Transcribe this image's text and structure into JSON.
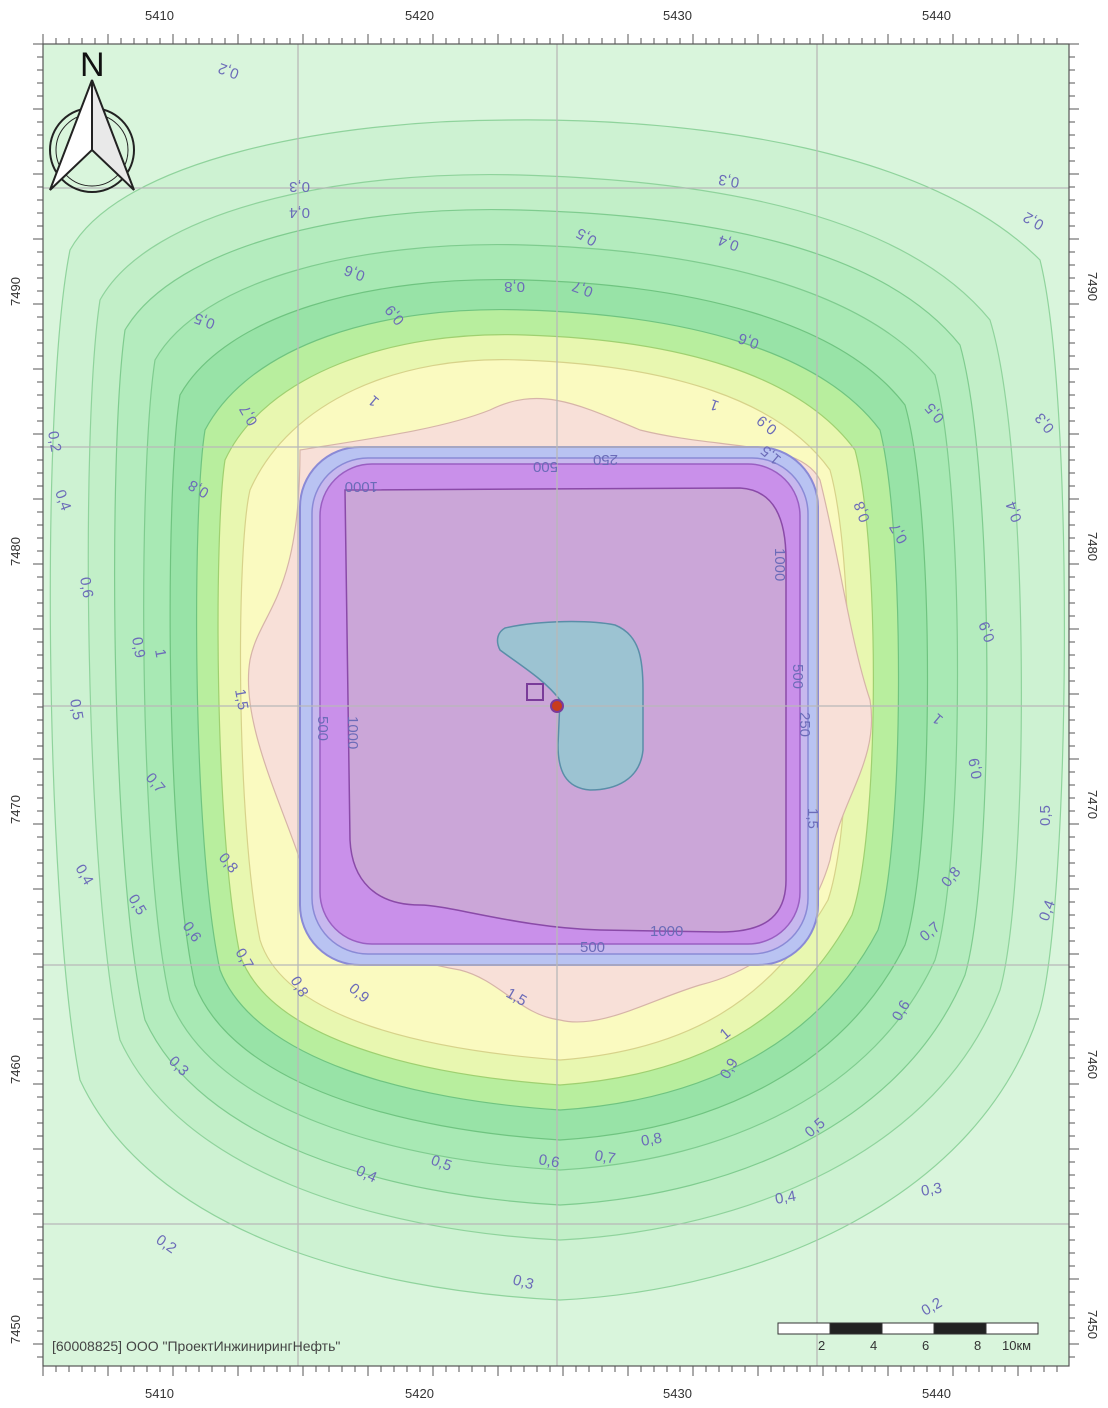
{
  "map": {
    "x_ticks": [
      "5410",
      "5420",
      "5430",
      "5440"
    ],
    "y_ticks": [
      "7490",
      "7480",
      "7470",
      "7460",
      "7450"
    ],
    "north_label": "N",
    "company": "[60008825] ООО \"ПроектИнжинирингНефть\"",
    "scale_labels": [
      "2",
      "4",
      "6",
      "8",
      "10км"
    ],
    "contour_labels": [
      "0,2",
      "0,3",
      "0,4",
      "0,5",
      "0,6",
      "0,7",
      "0,8",
      "0,9",
      "1",
      "1,5",
      "250",
      "500",
      "1000"
    ],
    "colors": {
      "outer": "#d9f5dc",
      "green1": "#c2efc8",
      "green2": "#a8e9b4",
      "green3": "#8ee0a0",
      "yellow": "#fafac0",
      "pink": "#f8e0d8",
      "blue_ring": "#b9c3f2",
      "purple": "#c990ea",
      "core": "#cba6d8",
      "lake": "#9cc3d2",
      "grid": "#b8b8b8"
    }
  }
}
